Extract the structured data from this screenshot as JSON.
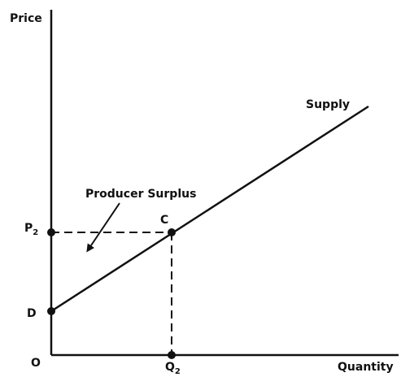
{
  "diagram": {
    "axes": {
      "y_label": "Price",
      "x_label": "Quantity",
      "origin": "O"
    },
    "curve": {
      "label": "Supply"
    },
    "area": {
      "label": "Producer Surplus"
    },
    "points": {
      "C": {
        "label": "C"
      },
      "D": {
        "label": "D"
      },
      "P2": {
        "label": "P",
        "subscript": "2"
      },
      "Q2": {
        "label": "Q",
        "subscript": "2"
      }
    }
  }
}
